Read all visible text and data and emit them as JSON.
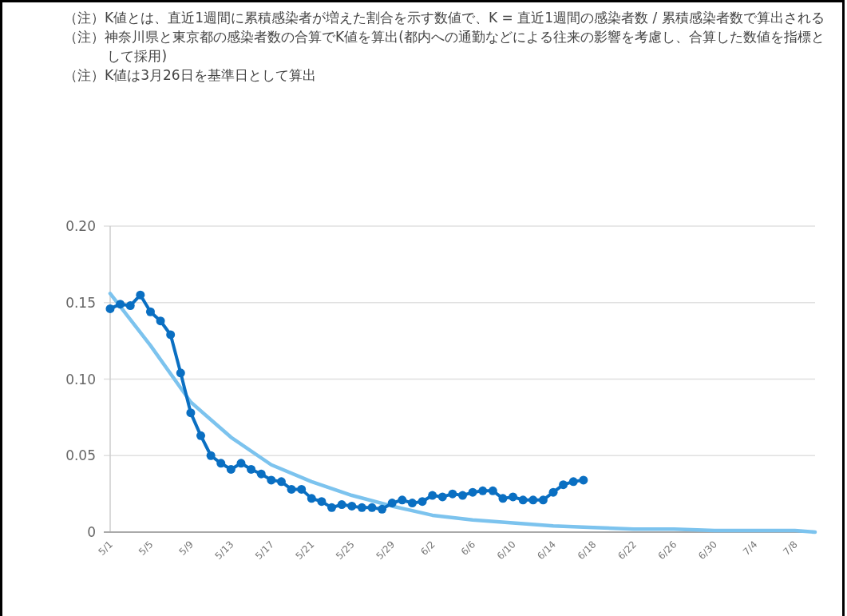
{
  "chart_data": {
    "type": "line",
    "annotations": [
      "（注）K値とは、直近1週間に累積感染者が増えた割合を示す数値で、K = 直近1週間の感染者数 / 累積感染者数で算出される",
      "（注）神奈川県と東京都の感染者数の合算でK値を算出(都内への通勤などによる往来の影響を考慮し、合算した数値を指標として採用)",
      "（注）K値は3月26日を基準日として算出"
    ],
    "xlim": [
      "--05-01",
      "--07-10"
    ],
    "xticks": [
      {
        "value": "--05-01",
        "label": "5/1"
      },
      {
        "value": "--05-05",
        "label": "5/5"
      },
      {
        "value": "--05-09",
        "label": "5/9"
      },
      {
        "value": "--05-13",
        "label": "5/13"
      },
      {
        "value": "--05-17",
        "label": "5/17"
      },
      {
        "value": "--05-21",
        "label": "5/21"
      },
      {
        "value": "--05-25",
        "label": "5/25"
      },
      {
        "value": "--05-29",
        "label": "5/29"
      },
      {
        "value": "--06-02",
        "label": "6/2"
      },
      {
        "value": "--06-06",
        "label": "6/6"
      },
      {
        "value": "--06-10",
        "label": "6/10"
      },
      {
        "value": "--06-14",
        "label": "6/14"
      },
      {
        "value": "--06-18",
        "label": "6/18"
      },
      {
        "value": "--06-22",
        "label": "6/22"
      },
      {
        "value": "--06-26",
        "label": "6/26"
      },
      {
        "value": "--06-30",
        "label": "6/30"
      },
      {
        "value": "--07-04",
        "label": "7/4"
      },
      {
        "value": "--07-08",
        "label": "7/8"
      }
    ],
    "ylim": [
      0,
      0.2
    ],
    "yticks": [
      0,
      0.05,
      {
        "value": 0.1,
        "label": "0.10"
      },
      0.15,
      {
        "value": 0.2,
        "label": "0.20"
      }
    ],
    "grid": "y",
    "series": [
      {
        "color": "#7cc3ee",
        "marker": "none",
        "x": [
          "--05-01",
          "--05-05",
          "--05-09",
          "--05-13",
          "--05-17",
          "--05-21",
          "--05-25",
          "--05-29",
          "--06-02",
          "--06-06",
          "--06-10",
          "--06-14",
          "--06-18",
          "--06-22",
          "--06-26",
          "--06-30",
          "--07-04",
          "--07-08",
          "--07-10"
        ],
        "values": [
          0.156,
          0.122,
          0.085,
          0.062,
          0.044,
          0.033,
          0.024,
          0.017,
          0.011,
          0.008,
          0.006,
          0.004,
          0.003,
          0.002,
          0.002,
          0.001,
          0.001,
          0.001,
          0.0
        ]
      },
      {
        "color": "#0a6fc2",
        "marker": "circle",
        "x": [
          "--05-01",
          "--05-02",
          "--05-03",
          "--05-04",
          "--05-05",
          "--05-06",
          "--05-07",
          "--05-08",
          "--05-09",
          "--05-10",
          "--05-11",
          "--05-12",
          "--05-13",
          "--05-14",
          "--05-15",
          "--05-16",
          "--05-17",
          "--05-18",
          "--05-19",
          "--05-20",
          "--05-21",
          "--05-22",
          "--05-23",
          "--05-24",
          "--05-25",
          "--05-26",
          "--05-27",
          "--05-28",
          "--05-29",
          "--05-30",
          "--05-31",
          "--06-01",
          "--06-02",
          "--06-03",
          "--06-04",
          "--06-05",
          "--06-06",
          "--06-07",
          "--06-08",
          "--06-09",
          "--06-10",
          "--06-11",
          "--06-12",
          "--06-13",
          "--06-14",
          "--06-15",
          "--06-16",
          "--06-17"
        ],
        "values": [
          0.146,
          0.149,
          0.148,
          0.155,
          0.144,
          0.138,
          0.129,
          0.104,
          0.078,
          0.063,
          0.05,
          0.045,
          0.041,
          0.045,
          0.041,
          0.038,
          0.034,
          0.033,
          0.028,
          0.028,
          0.022,
          0.02,
          0.016,
          0.018,
          0.017,
          0.016,
          0.016,
          0.015,
          0.019,
          0.021,
          0.019,
          0.02,
          0.024,
          0.023,
          0.025,
          0.024,
          0.026,
          0.027,
          0.027,
          0.022,
          0.023,
          0.021,
          0.021,
          0.021,
          0.026,
          0.031,
          0.033,
          0.034
        ]
      }
    ]
  }
}
